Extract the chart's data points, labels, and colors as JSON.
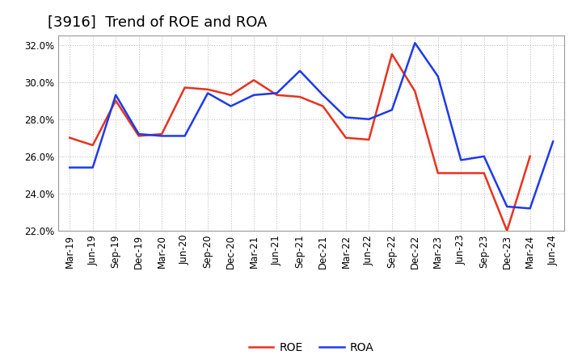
{
  "title": "[3916]  Trend of ROE and ROA",
  "x_labels": [
    "Mar-19",
    "Jun-19",
    "Sep-19",
    "Dec-19",
    "Mar-20",
    "Jun-20",
    "Sep-20",
    "Dec-20",
    "Mar-21",
    "Jun-21",
    "Sep-21",
    "Dec-21",
    "Mar-22",
    "Jun-22",
    "Sep-22",
    "Dec-22",
    "Mar-23",
    "Jun-23",
    "Sep-23",
    "Dec-23",
    "Mar-24",
    "Jun-24"
  ],
  "roe": [
    27.0,
    26.6,
    29.0,
    27.1,
    27.2,
    29.7,
    29.6,
    29.3,
    30.1,
    29.3,
    29.2,
    28.7,
    27.0,
    26.9,
    31.5,
    29.5,
    25.1,
    25.1,
    25.1,
    22.0,
    26.0,
    null
  ],
  "roa": [
    25.4,
    25.4,
    29.3,
    27.2,
    27.1,
    27.1,
    29.4,
    28.7,
    29.3,
    29.4,
    30.6,
    29.3,
    28.1,
    28.0,
    28.5,
    32.1,
    30.3,
    25.8,
    26.0,
    23.3,
    23.2,
    26.8
  ],
  "roe_color": "#e8321e",
  "roa_color": "#1e3ae8",
  "ylim": [
    22.0,
    32.5
  ],
  "yticks": [
    22.0,
    24.0,
    26.0,
    28.0,
    30.0,
    32.0
  ],
  "background_color": "#ffffff",
  "grid_color": "#b0b0b0",
  "title_fontsize": 13,
  "legend_fontsize": 10,
  "axis_fontsize": 8.5,
  "line_width": 1.8
}
